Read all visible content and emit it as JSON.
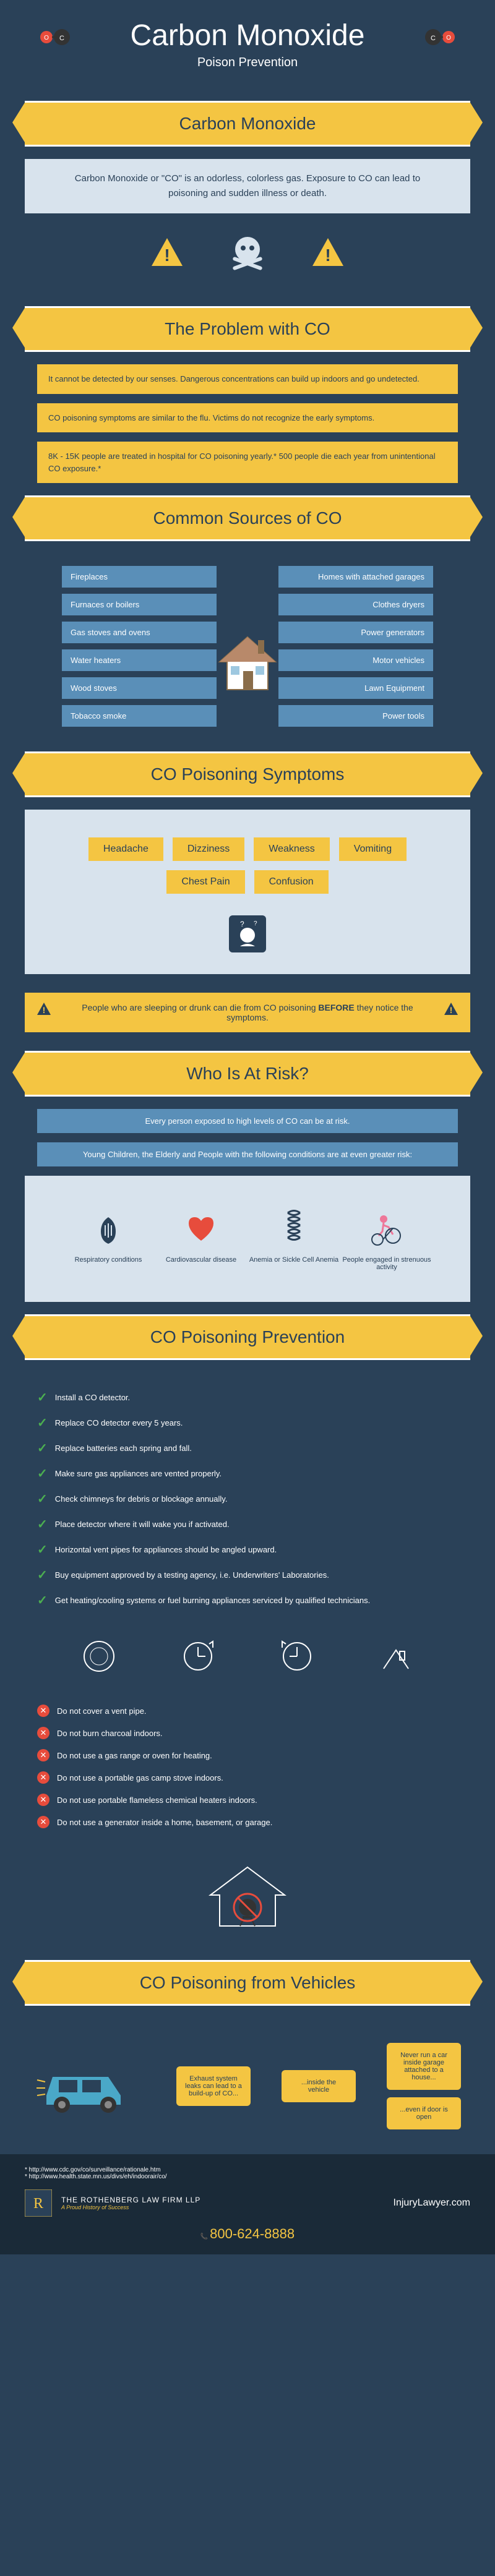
{
  "header": {
    "title": "Carbon Monoxide",
    "subtitle": "Poison Prevention"
  },
  "section1": {
    "banner": "Carbon Monoxide",
    "intro": "Carbon Monoxide or \"CO\" is an odorless, colorless gas. Exposure to CO can lead to poisoning and sudden illness or death."
  },
  "section2": {
    "banner": "The Problem with CO",
    "problems": [
      "It cannot be detected by our senses. Dangerous concentrations can build up indoors and go undetected.",
      "CO poisoning symptoms are similar to the flu. Victims do not recognize the early symptoms.",
      "8K - 15K people are treated in hospital for CO poisoning yearly.* 500 people die each year from unintentional CO exposure.*"
    ]
  },
  "section3": {
    "banner": "Common Sources of CO",
    "left": [
      "Fireplaces",
      "Furnaces or boilers",
      "Gas stoves and ovens",
      "Water heaters",
      "Wood stoves",
      "Tobacco smoke"
    ],
    "right": [
      "Homes with attached garages",
      "Clothes dryers",
      "Power generators",
      "Motor vehicles",
      "Lawn Equipment",
      "Power tools"
    ]
  },
  "section4": {
    "banner": "CO Poisoning Symptoms",
    "symptoms": [
      "Headache",
      "Dizziness",
      "Weakness",
      "Vomiting",
      "Chest Pain",
      "Confusion"
    ],
    "alert_pre": "People who are sleeping or drunk can die from CO poisoning ",
    "alert_bold": "BEFORE",
    "alert_post": " they notice the symptoms."
  },
  "section5": {
    "banner": "Who Is At Risk?",
    "box1": "Every person exposed to high levels of CO can be at risk.",
    "box2": "Young Children, the Elderly and People with the following conditions are at even greater risk:",
    "risks": [
      {
        "label": "Respiratory conditions"
      },
      {
        "label": "Cardiovascular disease"
      },
      {
        "label": "Anemia or Sickle Cell Anemia"
      },
      {
        "label": "People engaged in strenuous activity"
      }
    ]
  },
  "section6": {
    "banner": "CO Poisoning Prevention",
    "dos": [
      "Install a CO detector.",
      "Replace CO detector every 5 years.",
      "Replace batteries each spring and fall.",
      "Make sure gas appliances are vented properly.",
      "Check chimneys for debris or blockage annually.",
      "Place detector where it will wake you if activated.",
      "Horizontal vent pipes for appliances should be angled upward.",
      "Buy equipment approved by a testing agency, i.e. Underwriters' Laboratories.",
      "Get heating/cooling systems or fuel burning appliances serviced by qualified technicians."
    ],
    "donts": [
      "Do not cover a vent pipe.",
      "Do not burn charcoal indoors.",
      "Do not use a gas range or oven for heating.",
      "Do not use a portable gas camp stove indoors.",
      "Do not use portable flameless chemical heaters indoors.",
      "Do not use a generator inside a home, basement, or garage."
    ]
  },
  "section7": {
    "banner": "CO Poisoning from Vehicles",
    "bubble1": "Exhaust system leaks can lead to a build-up of CO...",
    "bubble2": "...inside the vehicle",
    "bubble3": "Never run a car inside garage attached to a house...",
    "bubble4": "...even if door is open"
  },
  "footer": {
    "ref1": "* http://www.cdc.gov/co/surveillance/rationale.htm",
    "ref2": "* http://www.health.state.mn.us/divs/eh/indoorair/co/",
    "brand": "THE ROTHENBERG LAW FIRM LLP",
    "tagline": "A Proud History of Success",
    "site": "InjuryLawyer.com",
    "phone": "800-624-8888"
  },
  "colors": {
    "bg": "#2a4158",
    "accent": "#f4c542",
    "blue": "#5a8fb8",
    "panel": "#d8e3ed",
    "green": "#4caf50",
    "red": "#e74c3c"
  }
}
